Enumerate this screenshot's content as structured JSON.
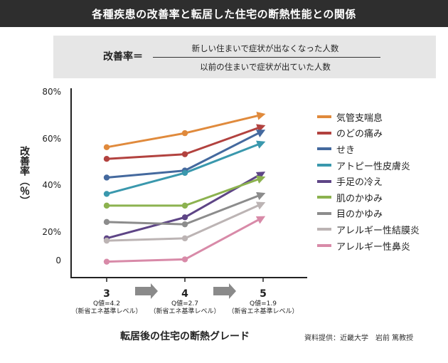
{
  "title": "各種疾患の改善率と転居した住宅の断熱性能との関係",
  "formula": {
    "label": "改善率＝",
    "numerator": "新しい住まいで症状が出なくなった人数",
    "denominator": "以前の住まいで症状が出ていた人数"
  },
  "chart_data": {
    "type": "line",
    "xlabel": "転居後の住宅の断熱グレード",
    "ylabel": "改善率（％）",
    "categories": [
      "3",
      "4",
      "5"
    ],
    "category_notes": [
      [
        "Q値=4.2",
        "（新省エネ基準レベル）"
      ],
      [
        "Q値=2.7",
        "（新省エネ基準レベル）"
      ],
      [
        "Q値=1.9",
        "（新省エネ基準レベル）"
      ]
    ],
    "ylim": [
      0,
      80
    ],
    "yticks": [
      "80%",
      "60%",
      "40%",
      "20%",
      "0"
    ],
    "grid": false,
    "legend_position": "right",
    "series": [
      {
        "name": "気管支喘息",
        "color": "#e08a3c",
        "values": [
          56,
          62,
          70
        ]
      },
      {
        "name": "のどの痛み",
        "color": "#b2423f",
        "values": [
          51,
          53,
          65
        ]
      },
      {
        "name": "せき",
        "color": "#44699e",
        "values": [
          43,
          46,
          63
        ]
      },
      {
        "name": "アトピー性皮膚炎",
        "color": "#3a98ad",
        "values": [
          36,
          45,
          58
        ]
      },
      {
        "name": "手足の冷え",
        "color": "#5e4586",
        "values": [
          17,
          26,
          45
        ]
      },
      {
        "name": "肌のかゆみ",
        "color": "#8cb24f",
        "values": [
          31,
          31,
          43
        ]
      },
      {
        "name": "目のかゆみ",
        "color": "#8c8c8c",
        "values": [
          24,
          23,
          36
        ]
      },
      {
        "name": "アレルギー性結膜炎",
        "color": "#bcb4b4",
        "values": [
          16,
          17,
          32
        ]
      },
      {
        "name": "アレルギー性鼻炎",
        "color": "#d88aa8",
        "values": [
          7,
          8,
          26
        ]
      }
    ]
  },
  "credit": "資料提供：近畿大学　岩前 篤教授"
}
